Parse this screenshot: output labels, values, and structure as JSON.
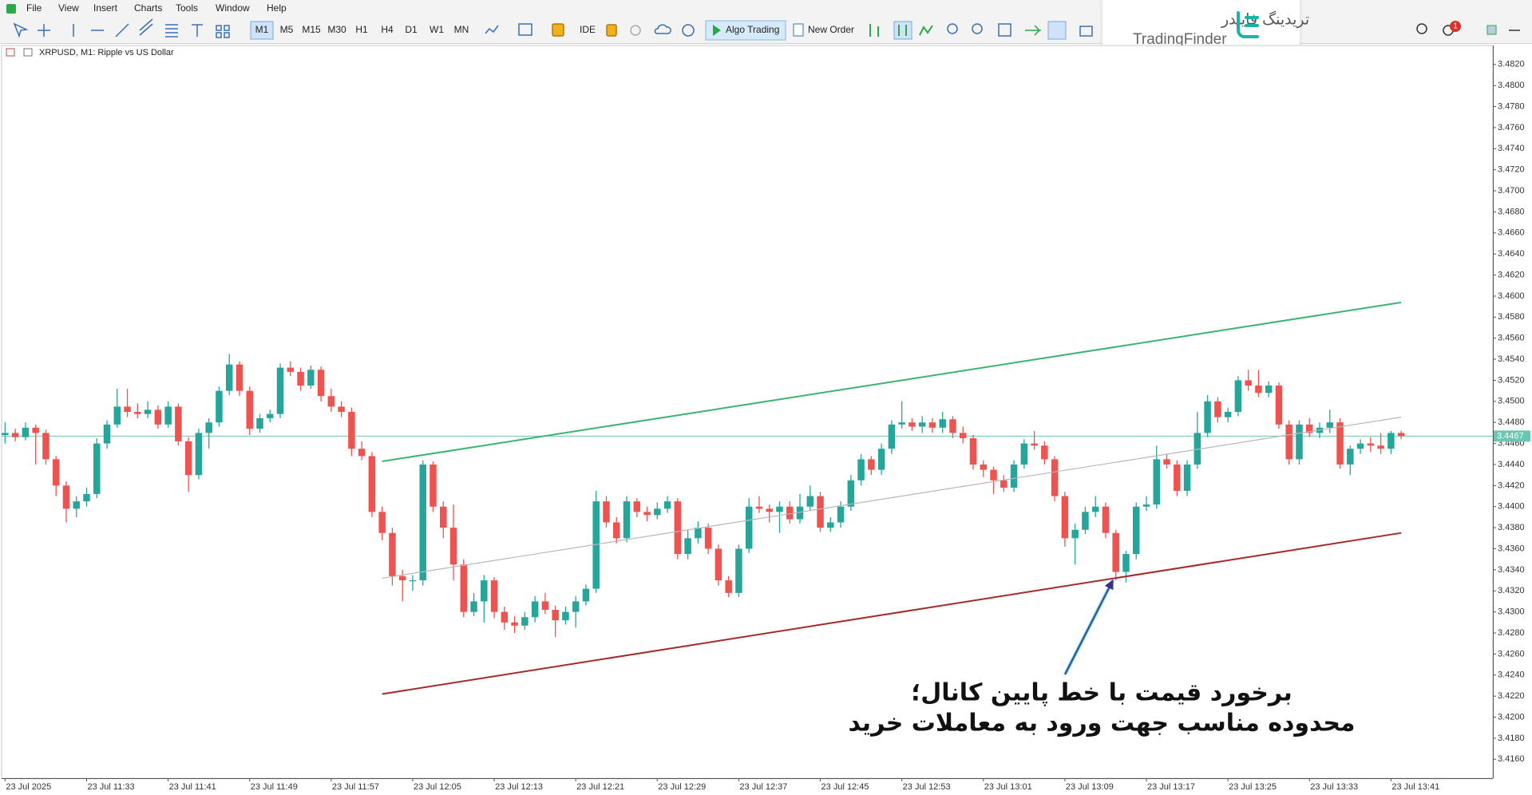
{
  "menu": [
    "File",
    "View",
    "Insert",
    "Charts",
    "Tools",
    "Window",
    "Help"
  ],
  "toolbar": {
    "timeframes": [
      "M1",
      "M5",
      "M15",
      "M30",
      "H1",
      "H4",
      "D1",
      "W1",
      "MN"
    ],
    "ide": "IDE",
    "algo_trading": "Algo Trading",
    "new_order": "New Order",
    "notifications": "1"
  },
  "watermark": {
    "persian": "تریدینگ فایندر",
    "latin": "TradingFinder"
  },
  "annotation": [
    "برخورد قیمت با خط پایین کانال؛",
    "محدوده مناسب جهت ورود به معاملات خرید"
  ],
  "chart_data": {
    "type": "candlestick",
    "title": "XRPUSD, M1:  Ripple vs US Dollar",
    "up_color": "#26a69a",
    "down_color": "#ef5350",
    "xlim": [
      -0.5,
      146
    ],
    "ylim": [
      3.4142,
      3.4835
    ],
    "xticks": [
      {
        "value": 0,
        "label": "23 Jul 2025"
      },
      {
        "value": 8,
        "label": "23 Jul 11:33"
      },
      {
        "value": 16,
        "label": "23 Jul 11:41"
      },
      {
        "value": 24,
        "label": "23 Jul 11:49"
      },
      {
        "value": 32,
        "label": "23 Jul 11:57"
      },
      {
        "value": 40,
        "label": "23 Jul 12:05"
      },
      {
        "value": 48,
        "label": "23 Jul 12:13"
      },
      {
        "value": 56,
        "label": "23 Jul 12:21"
      },
      {
        "value": 64,
        "label": "23 Jul 12:29"
      },
      {
        "value": 72,
        "label": "23 Jul 12:37"
      },
      {
        "value": 80,
        "label": "23 Jul 12:45"
      },
      {
        "value": 88,
        "label": "23 Jul 12:53"
      },
      {
        "value": 96,
        "label": "23 Jul 13:01"
      },
      {
        "value": 104,
        "label": "23 Jul 13:09"
      },
      {
        "value": 112,
        "label": "23 Jul 13:17"
      },
      {
        "value": 120,
        "label": "23 Jul 13:25"
      },
      {
        "value": 128,
        "label": "23 Jul 13:33"
      },
      {
        "value": 136,
        "label": "23 Jul 13:41"
      }
    ],
    "yticks": [
      {
        "value": 3.416,
        "label": "3.4160"
      },
      {
        "value": 3.418,
        "label": "3.4180"
      },
      {
        "value": 3.42,
        "label": "3.4200"
      },
      {
        "value": 3.422,
        "label": "3.4220"
      },
      {
        "value": 3.424,
        "label": "3.4240"
      },
      {
        "value": 3.426,
        "label": "3.4260"
      },
      {
        "value": 3.428,
        "label": "3.4280"
      },
      {
        "value": 3.43,
        "label": "3.4300"
      },
      {
        "value": 3.432,
        "label": "3.4320"
      },
      {
        "value": 3.434,
        "label": "3.4340"
      },
      {
        "value": 3.436,
        "label": "3.4360"
      },
      {
        "value": 3.438,
        "label": "3.4380"
      },
      {
        "value": 3.44,
        "label": "3.4400"
      },
      {
        "value": 3.442,
        "label": "3.4420"
      },
      {
        "value": 3.444,
        "label": "3.4440"
      },
      {
        "value": 3.446,
        "label": "3.4460"
      },
      {
        "value": 3.448,
        "label": "3.4480"
      },
      {
        "value": 3.45,
        "label": "3.4500"
      },
      {
        "value": 3.452,
        "label": "3.4520"
      },
      {
        "value": 3.454,
        "label": "3.4540"
      },
      {
        "value": 3.456,
        "label": "3.4560"
      },
      {
        "value": 3.458,
        "label": "3.4580"
      },
      {
        "value": 3.46,
        "label": "3.4600"
      },
      {
        "value": 3.462,
        "label": "3.4620"
      },
      {
        "value": 3.464,
        "label": "3.4640"
      },
      {
        "value": 3.466,
        "label": "3.4660"
      },
      {
        "value": 3.468,
        "label": "3.4680"
      },
      {
        "value": 3.47,
        "label": "3.4700"
      },
      {
        "value": 3.472,
        "label": "3.4720"
      },
      {
        "value": 3.474,
        "label": "3.4740"
      },
      {
        "value": 3.476,
        "label": "3.4760"
      },
      {
        "value": 3.478,
        "label": "3.4780"
      },
      {
        "value": 3.48,
        "label": "3.4800"
      },
      {
        "value": 3.482,
        "label": "3.4820"
      }
    ],
    "current_price": 3.4467,
    "current_price_color": "#6cc7b2",
    "channels": [
      {
        "color": "#3cb371",
        "from": [
          37,
          3.4443
        ],
        "to": [
          137,
          3.4594
        ]
      },
      {
        "color": "#b8b8b8",
        "from": [
          37,
          3.4332
        ],
        "to": [
          137,
          3.4485
        ]
      },
      {
        "color": "#a52a2a",
        "from": [
          37,
          3.4222
        ],
        "to": [
          137,
          3.4375
        ]
      }
    ],
    "candles": [
      [
        3.4468,
        3.448,
        3.446,
        3.447
      ],
      [
        3.447,
        3.4474,
        3.4462,
        3.4466
      ],
      [
        3.4466,
        3.448,
        3.4463,
        3.4475
      ],
      [
        3.4475,
        3.4478,
        3.444,
        3.447
      ],
      [
        3.447,
        3.4473,
        3.444,
        3.4445
      ],
      [
        3.4445,
        3.4448,
        3.441,
        3.442
      ],
      [
        3.442,
        3.4424,
        3.4385,
        3.4398
      ],
      [
        3.4398,
        3.441,
        3.439,
        3.4405
      ],
      [
        3.4405,
        3.4418,
        3.44,
        3.4412
      ],
      [
        3.4412,
        3.4465,
        3.4408,
        3.446
      ],
      [
        3.446,
        3.4482,
        3.4455,
        3.4478
      ],
      [
        3.4478,
        3.4512,
        3.4475,
        3.4495
      ],
      [
        3.4495,
        3.4512,
        3.4485,
        3.449
      ],
      [
        3.449,
        3.4498,
        3.4484,
        3.4488
      ],
      [
        3.4488,
        3.45,
        3.4484,
        3.4492
      ],
      [
        3.4492,
        3.4496,
        3.4474,
        3.4478
      ],
      [
        3.4478,
        3.45,
        3.4475,
        3.4495
      ],
      [
        3.4495,
        3.4498,
        3.4458,
        3.4462
      ],
      [
        3.4462,
        3.4466,
        3.4414,
        3.443
      ],
      [
        3.443,
        3.4474,
        3.4426,
        3.447
      ],
      [
        3.447,
        3.4484,
        3.4455,
        3.448
      ],
      [
        3.448,
        3.4514,
        3.4476,
        3.451
      ],
      [
        3.451,
        3.4545,
        3.4506,
        3.4535
      ],
      [
        3.4535,
        3.4538,
        3.4505,
        3.451
      ],
      [
        3.451,
        3.4514,
        3.4468,
        3.4474
      ],
      [
        3.4474,
        3.4488,
        3.447,
        3.4484
      ],
      [
        3.4484,
        3.4492,
        3.448,
        3.4488
      ],
      [
        3.4488,
        3.4536,
        3.4484,
        3.4532
      ],
      [
        3.4532,
        3.4538,
        3.4524,
        3.4528
      ],
      [
        3.4528,
        3.4532,
        3.451,
        3.4515
      ],
      [
        3.4515,
        3.4534,
        3.4512,
        3.453
      ],
      [
        3.453,
        3.4533,
        3.45,
        3.4505
      ],
      [
        3.4505,
        3.4512,
        3.449,
        3.4495
      ],
      [
        3.4495,
        3.45,
        3.4485,
        3.449
      ],
      [
        3.449,
        3.4494,
        3.4448,
        3.4455
      ],
      [
        3.4455,
        3.4462,
        3.4444,
        3.4448
      ],
      [
        3.4448,
        3.4452,
        3.439,
        3.4395
      ],
      [
        3.4395,
        3.44,
        3.4368,
        3.4375
      ],
      [
        3.4375,
        3.438,
        3.4325,
        3.4334
      ],
      [
        3.4334,
        3.434,
        3.431,
        3.433
      ],
      [
        3.433,
        3.4335,
        3.432,
        3.433
      ],
      [
        3.433,
        3.4444,
        3.4325,
        3.444
      ],
      [
        3.444,
        3.4443,
        3.4395,
        3.44
      ],
      [
        3.44,
        3.4405,
        3.437,
        3.438
      ],
      [
        3.438,
        3.4402,
        3.433,
        3.4345
      ],
      [
        3.4345,
        3.435,
        3.4295,
        3.43
      ],
      [
        3.43,
        3.4318,
        3.4296,
        3.431
      ],
      [
        3.431,
        3.4335,
        3.429,
        3.433
      ],
      [
        3.433,
        3.4333,
        3.4294,
        3.43
      ],
      [
        3.43,
        3.4305,
        3.4283,
        3.429
      ],
      [
        3.429,
        3.4296,
        3.428,
        3.4287
      ],
      [
        3.4287,
        3.43,
        3.4283,
        3.4295
      ],
      [
        3.4295,
        3.4315,
        3.429,
        3.431
      ],
      [
        3.431,
        3.4318,
        3.4298,
        3.4302
      ],
      [
        3.4302,
        3.4306,
        3.4276,
        3.4292
      ],
      [
        3.4292,
        3.4305,
        3.4288,
        3.43
      ],
      [
        3.43,
        3.4315,
        3.4285,
        3.431
      ],
      [
        3.431,
        3.4326,
        3.4306,
        3.4322
      ],
      [
        3.4322,
        3.4415,
        3.4318,
        3.4405
      ],
      [
        3.4405,
        3.441,
        3.438,
        3.4385
      ],
      [
        3.4385,
        3.439,
        3.4365,
        3.437
      ],
      [
        3.437,
        3.441,
        3.4366,
        3.4405
      ],
      [
        3.4405,
        3.4408,
        3.439,
        3.4395
      ],
      [
        3.4395,
        3.44,
        3.4386,
        3.4392
      ],
      [
        3.4392,
        3.4404,
        3.4388,
        3.4398
      ],
      [
        3.4398,
        3.441,
        3.4394,
        3.4405
      ],
      [
        3.4405,
        3.4408,
        3.435,
        3.4355
      ],
      [
        3.4355,
        3.4378,
        3.435,
        3.437
      ],
      [
        3.437,
        3.4386,
        3.4365,
        3.438
      ],
      [
        3.438,
        3.4384,
        3.4355,
        3.436
      ],
      [
        3.436,
        3.4364,
        3.4325,
        3.433
      ],
      [
        3.433,
        3.4334,
        3.4314,
        3.4318
      ],
      [
        3.4318,
        3.4364,
        3.4314,
        3.436
      ],
      [
        3.436,
        3.4408,
        3.4356,
        3.44
      ],
      [
        3.44,
        3.441,
        3.4394,
        3.4398
      ],
      [
        3.4398,
        3.4402,
        3.4385,
        3.4395
      ],
      [
        3.4395,
        3.4405,
        3.4375,
        3.44
      ],
      [
        3.44,
        3.4405,
        3.4384,
        3.4388
      ],
      [
        3.4388,
        3.4412,
        3.4384,
        3.44
      ],
      [
        3.44,
        3.442,
        3.4396,
        3.441
      ],
      [
        3.441,
        3.4414,
        3.4376,
        3.438
      ],
      [
        3.438,
        3.439,
        3.4376,
        3.4385
      ],
      [
        3.4385,
        3.4405,
        3.438,
        3.44
      ],
      [
        3.44,
        3.443,
        3.4396,
        3.4425
      ],
      [
        3.4425,
        3.445,
        3.442,
        3.4445
      ],
      [
        3.4445,
        3.4448,
        3.443,
        3.4435
      ],
      [
        3.4435,
        3.446,
        3.443,
        3.4455
      ],
      [
        3.4455,
        3.4482,
        3.445,
        3.4478
      ],
      [
        3.4478,
        3.45,
        3.4474,
        3.448
      ],
      [
        3.448,
        3.4484,
        3.4472,
        3.4476
      ],
      [
        3.4476,
        3.4486,
        3.447,
        3.448
      ],
      [
        3.448,
        3.4484,
        3.447,
        3.4475
      ],
      [
        3.4475,
        3.449,
        3.447,
        3.4483
      ],
      [
        3.4483,
        3.4486,
        3.4465,
        3.447
      ],
      [
        3.447,
        3.4476,
        3.446,
        3.4465
      ],
      [
        3.4465,
        3.4468,
        3.4435,
        3.444
      ],
      [
        3.444,
        3.4444,
        3.4428,
        3.4435
      ],
      [
        3.4435,
        3.4438,
        3.4412,
        3.4425
      ],
      [
        3.4425,
        3.443,
        3.4414,
        3.4418
      ],
      [
        3.4418,
        3.4444,
        3.4414,
        3.444
      ],
      [
        3.444,
        3.4464,
        3.4436,
        3.446
      ],
      [
        3.446,
        3.4472,
        3.4454,
        3.4458
      ],
      [
        3.4458,
        3.4462,
        3.444,
        3.4445
      ],
      [
        3.4445,
        3.4448,
        3.4405,
        3.441
      ],
      [
        3.441,
        3.4414,
        3.4362,
        3.437
      ],
      [
        3.437,
        3.4384,
        3.4345,
        3.4378
      ],
      [
        3.4378,
        3.44,
        3.4374,
        3.4395
      ],
      [
        3.4395,
        3.441,
        3.439,
        3.44
      ],
      [
        3.44,
        3.4404,
        3.437,
        3.4375
      ],
      [
        3.4375,
        3.4378,
        3.433,
        3.4338
      ],
      [
        3.4338,
        3.4358,
        3.4328,
        3.4355
      ],
      [
        3.4355,
        3.4404,
        3.435,
        3.44
      ],
      [
        3.44,
        3.441,
        3.4396,
        3.4402
      ],
      [
        3.4402,
        3.4458,
        3.4398,
        3.4445
      ],
      [
        3.4445,
        3.445,
        3.4436,
        3.444
      ],
      [
        3.444,
        3.4444,
        3.441,
        3.4415
      ],
      [
        3.4415,
        3.4444,
        3.441,
        3.444
      ],
      [
        3.444,
        3.449,
        3.4436,
        3.447
      ],
      [
        3.447,
        3.4506,
        3.4466,
        3.45
      ],
      [
        3.45,
        3.4504,
        3.448,
        3.4485
      ],
      [
        3.4485,
        3.4494,
        3.448,
        3.449
      ],
      [
        3.449,
        3.4524,
        3.4486,
        3.452
      ],
      [
        3.452,
        3.453,
        3.451,
        3.4515
      ],
      [
        3.4515,
        3.453,
        3.4504,
        3.4508
      ],
      [
        3.4508,
        3.4519,
        3.4504,
        3.4515
      ],
      [
        3.4515,
        3.4518,
        3.4474,
        3.4478
      ],
      [
        3.4478,
        3.4482,
        3.444,
        3.4445
      ],
      [
        3.4445,
        3.4482,
        3.444,
        3.4478
      ],
      [
        3.4478,
        3.4484,
        3.4466,
        3.447
      ],
      [
        3.447,
        3.448,
        3.4465,
        3.4475
      ],
      [
        3.4475,
        3.4492,
        3.447,
        3.448
      ],
      [
        3.448,
        3.4484,
        3.4436,
        3.444
      ],
      [
        3.444,
        3.4458,
        3.443,
        3.4455
      ],
      [
        3.4455,
        3.4464,
        3.445,
        3.446
      ],
      [
        3.446,
        3.4466,
        3.4452,
        3.4458
      ],
      [
        3.4458,
        3.447,
        3.445,
        3.4455
      ],
      [
        3.4455,
        3.4472,
        3.445,
        3.447
      ],
      [
        3.447,
        3.4472,
        3.4464,
        3.4467
      ]
    ]
  }
}
